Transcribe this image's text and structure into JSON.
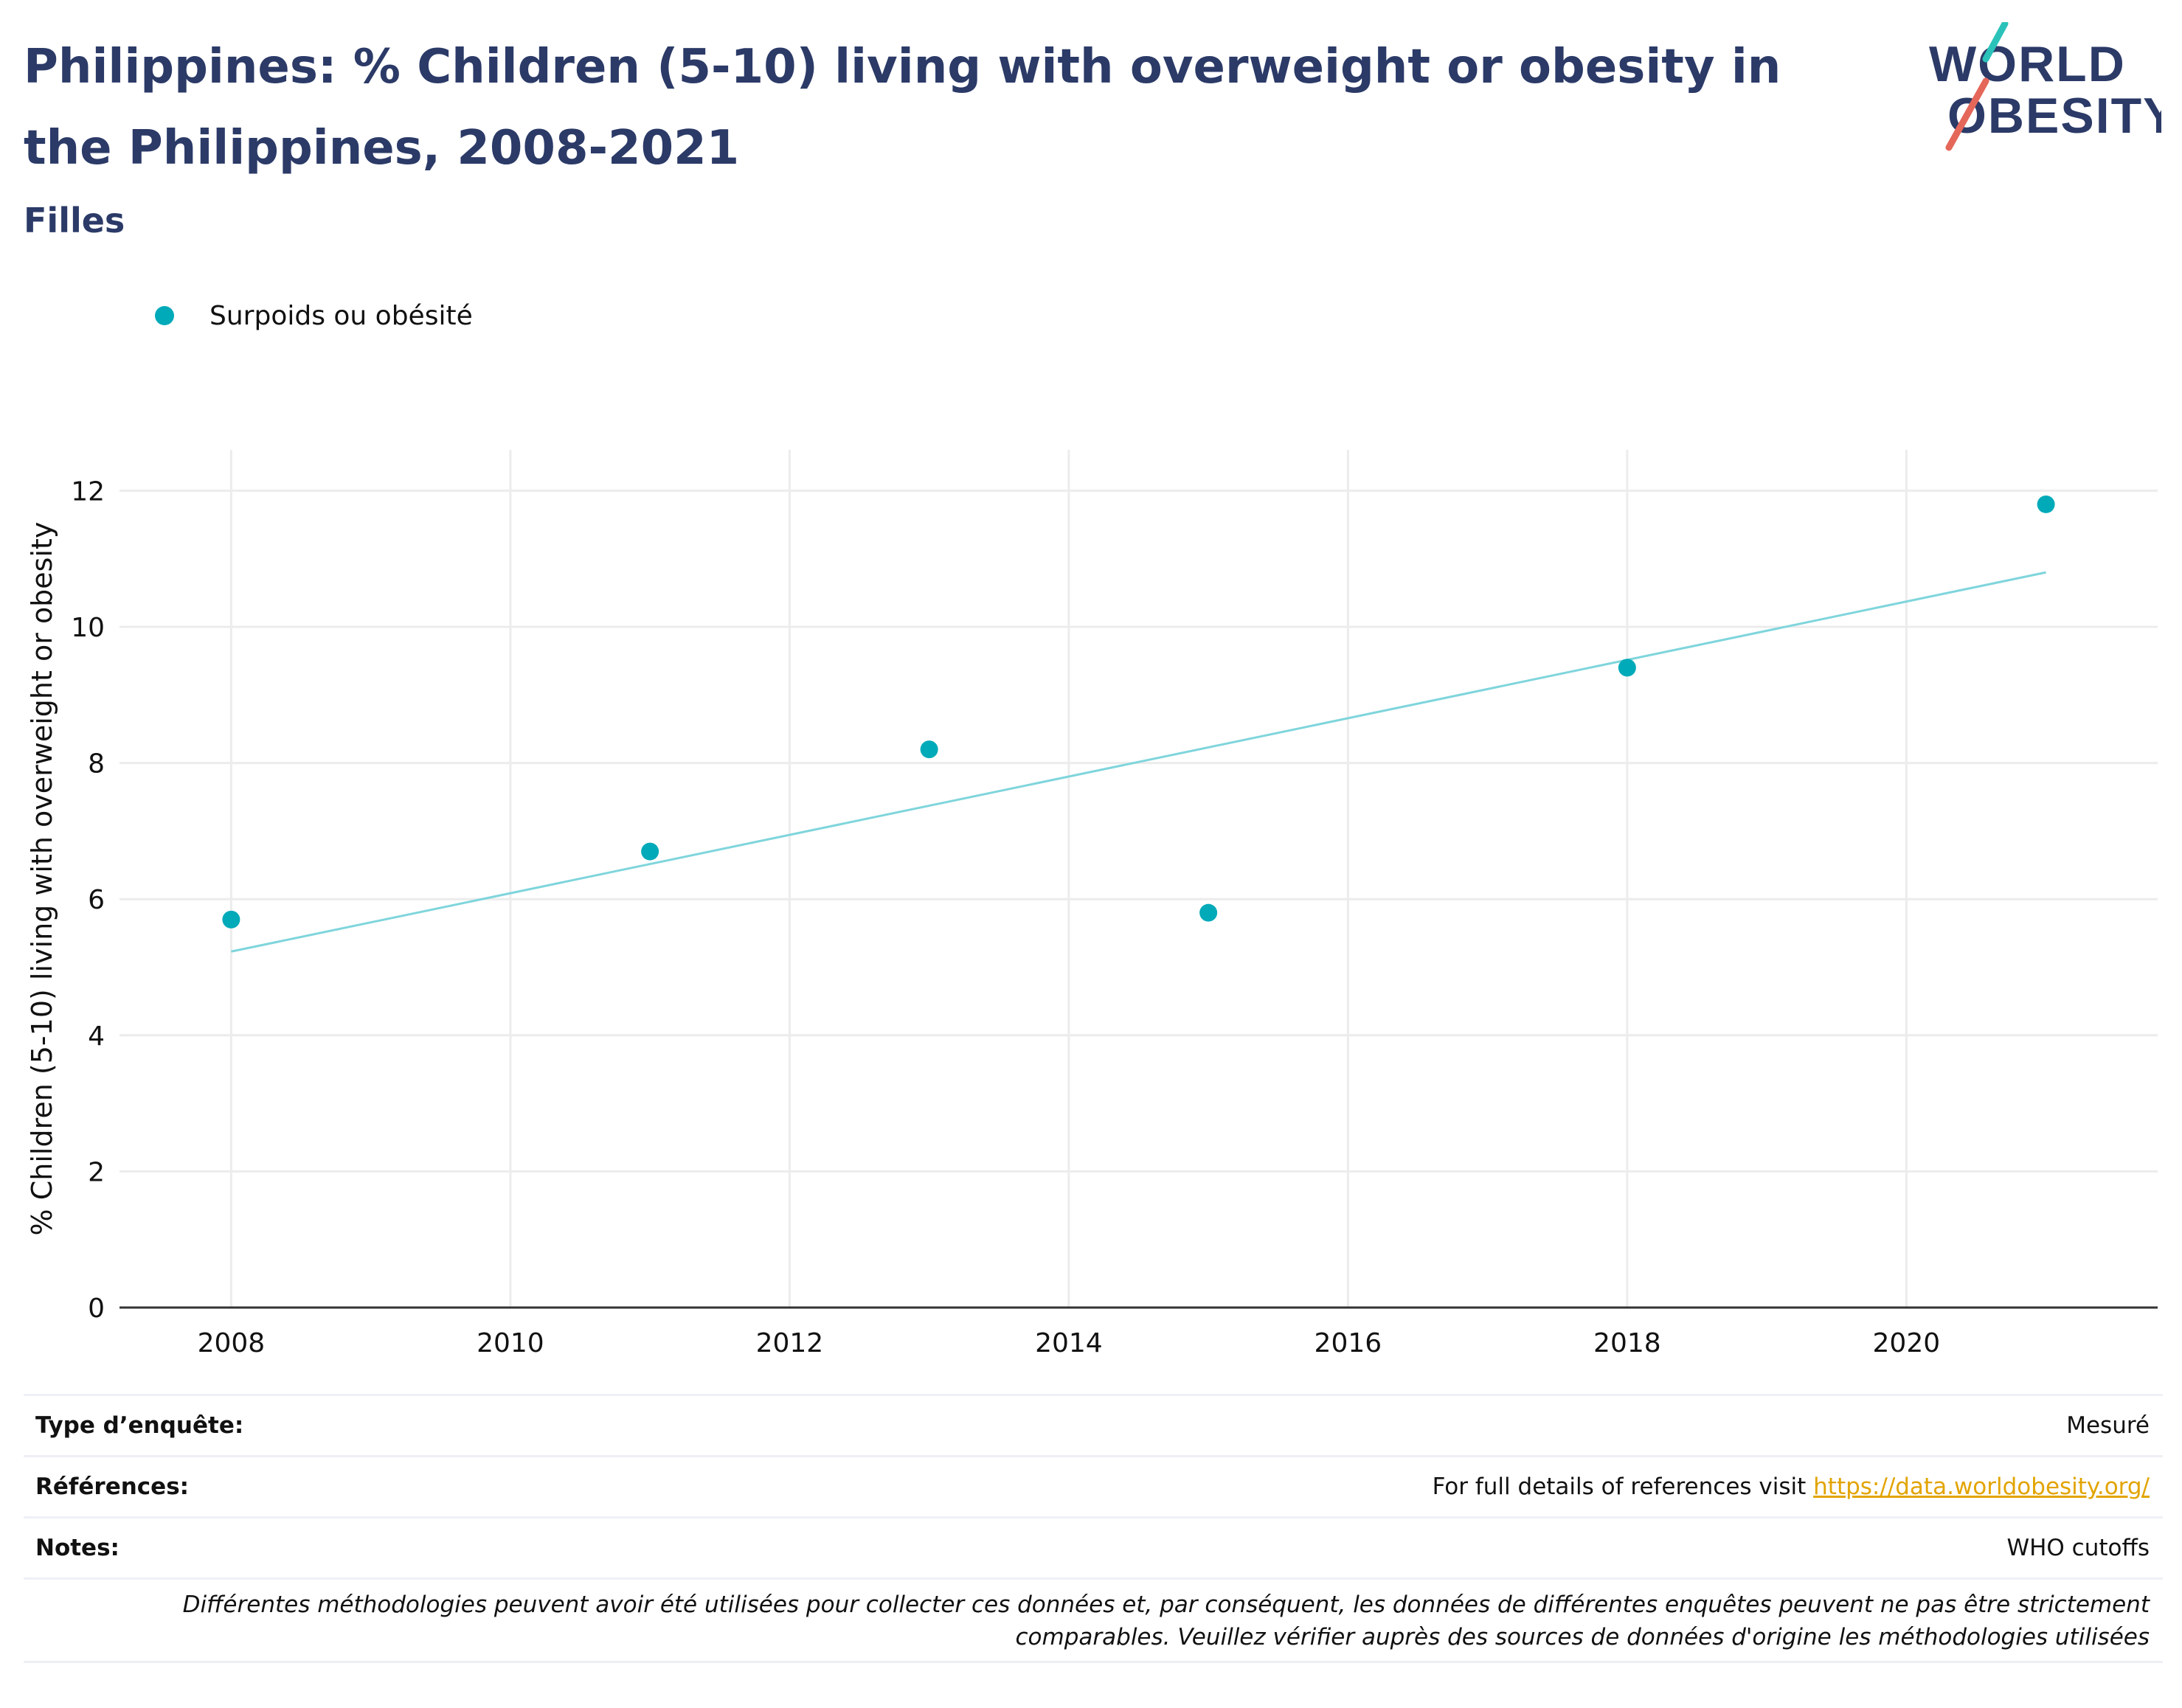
{
  "header": {
    "title": "Philippines: % Children (5-10) living with overweight or obesity in the Philippines, 2008-2021",
    "subtitle": "Filles",
    "logo_line1": "WORLD",
    "logo_line2": "OBESITY"
  },
  "colors": {
    "title": "#2b3a67",
    "series": "#00aab9",
    "trend": "#7fd5dc",
    "grid": "#ececec",
    "link": "#e2a400",
    "logo_teal": "#2bc2b9",
    "logo_red": "#e5675a"
  },
  "chart_data": {
    "type": "scatter",
    "ylabel": "% Children (5-10) living with overweight or obesity",
    "xlabel": "",
    "xlim": [
      2007.2,
      2021.8
    ],
    "ylim": [
      0,
      12.6
    ],
    "x_ticks": [
      2008,
      2010,
      2012,
      2014,
      2016,
      2018,
      2020
    ],
    "y_ticks": [
      0,
      2,
      4,
      6,
      8,
      10,
      12
    ],
    "grid": true,
    "legend_position": "top-left",
    "series": [
      {
        "name": "Surpoids ou obésité",
        "x": [
          2008,
          2011,
          2013,
          2015,
          2018,
          2021
        ],
        "y": [
          5.7,
          6.7,
          8.2,
          5.8,
          9.4,
          11.8
        ]
      }
    ],
    "trendline": {
      "x": [
        2008,
        2021
      ],
      "y": [
        5.23,
        10.8
      ]
    }
  },
  "meta": {
    "survey_type_label": "Type d’enquête:",
    "survey_type_value": "Mesuré",
    "references_label": "Références:",
    "references_text": "For full details of references visit ",
    "references_link": "https://data.worldobesity.org/",
    "notes_label": "Notes:",
    "notes_value": "WHO cutoffs",
    "disclaimer_line1": "Différentes méthodologies peuvent avoir été utilisées pour collecter ces données et, par conséquent, les données de différentes enquêtes peuvent ne pas être strictement",
    "disclaimer_line2": "comparables. Veuillez vérifier auprès des sources de données d'origine les méthodologies utilisées"
  }
}
